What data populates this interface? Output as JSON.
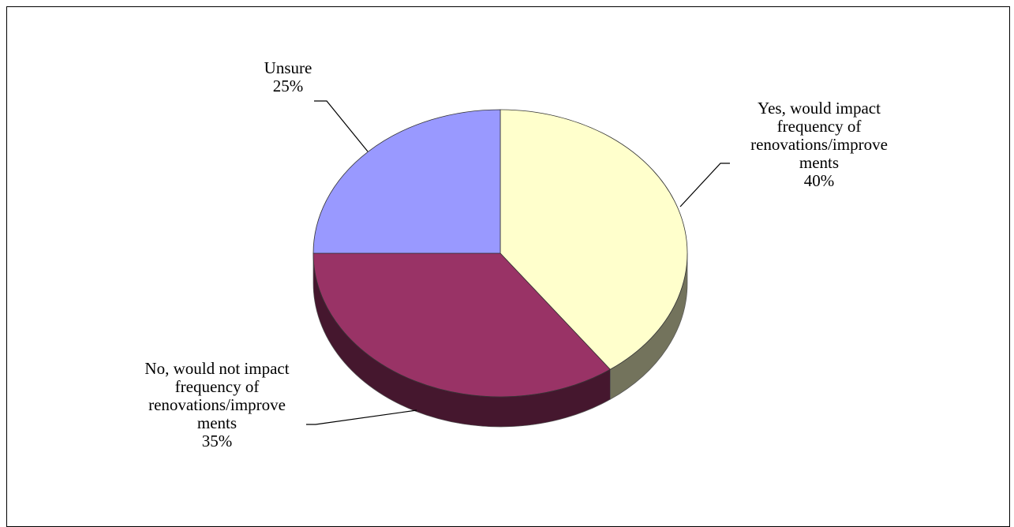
{
  "chart_data": {
    "type": "pie",
    "slices": [
      {
        "label_lines": [
          "Yes, would impact",
          "frequency of",
          "renovations/improve",
          "ments"
        ],
        "value": 40,
        "value_label": "40%",
        "color": "#ffffcc"
      },
      {
        "label_lines": [
          "No, would not impact",
          "frequency of",
          "renovations/improve",
          "ments"
        ],
        "value": 35,
        "value_label": "35%",
        "color": "#993366"
      },
      {
        "label_lines": [
          "Unsure"
        ],
        "value": 25,
        "value_label": "25%",
        "color": "#9999ff"
      }
    ],
    "style": "3d-pie",
    "start_angle": "12 o'clock",
    "direction": "clockwise"
  }
}
